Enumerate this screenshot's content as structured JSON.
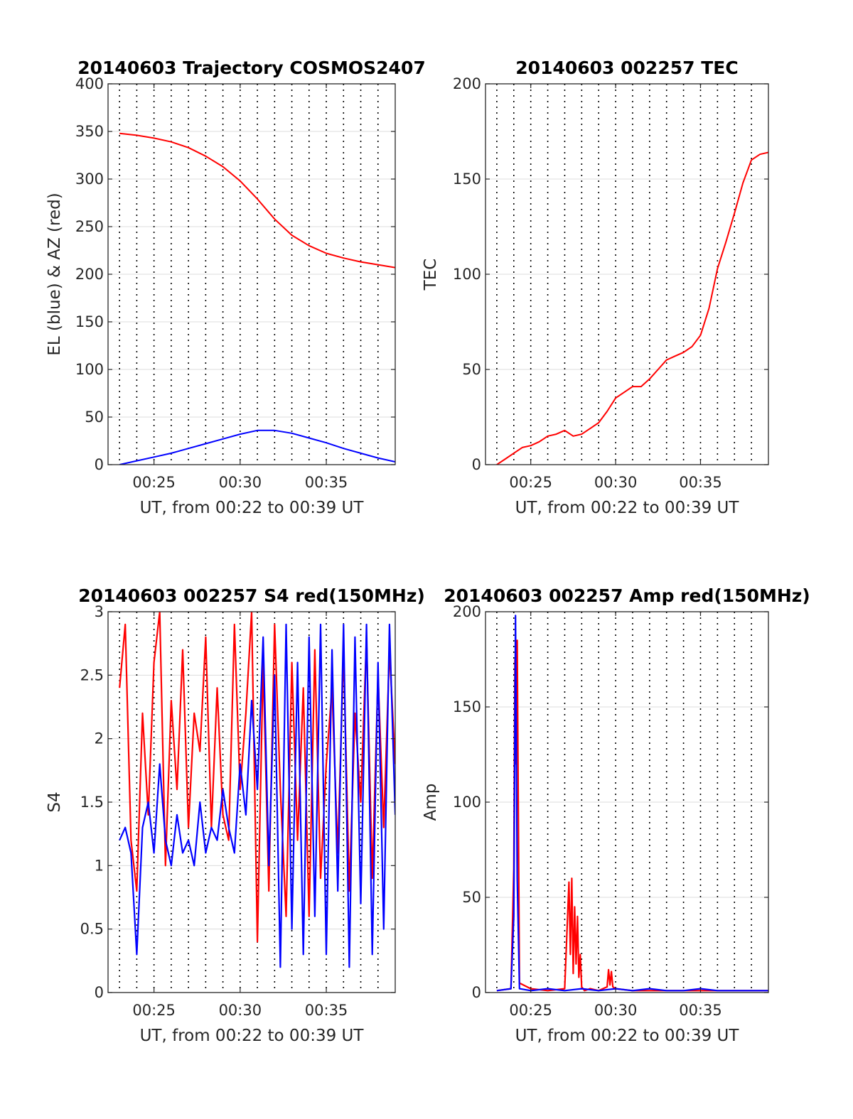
{
  "figure": {
    "background": "#ffffff"
  },
  "chart_data": [
    {
      "id": "trajectory",
      "type": "line",
      "title": "20140603 Trajectory COSMOS2407",
      "xlabel": "UT, from 00:22 to 00:39 UT",
      "ylabel": "EL (blue) & AZ (red)",
      "xlim": [
        "00:22:20",
        "00:39:00"
      ],
      "ylim": [
        0,
        400
      ],
      "yticks": [
        0,
        50,
        100,
        150,
        200,
        250,
        300,
        350,
        400
      ],
      "xticks": [
        "00:25",
        "00:30",
        "00:35"
      ],
      "dotted_time_gridlines": [
        "00:23",
        "00:24",
        "00:25",
        "00:26",
        "00:27",
        "00:28",
        "00:29",
        "00:30",
        "00:31",
        "00:32",
        "00:33",
        "00:34",
        "00:35",
        "00:36",
        "00:37",
        "00:38"
      ],
      "grid": true,
      "series": [
        {
          "color": "#ff0000",
          "x": [
            "00:23",
            "00:24",
            "00:25",
            "00:26",
            "00:27",
            "00:28",
            "00:29",
            "00:30",
            "00:31",
            "00:32",
            "00:33",
            "00:34",
            "00:35",
            "00:36",
            "00:37",
            "00:38",
            "00:39"
          ],
          "y": [
            348,
            346,
            343,
            339,
            333,
            324,
            313,
            298,
            279,
            258,
            241,
            230,
            222,
            217,
            213,
            210,
            207
          ]
        },
        {
          "color": "#0000ff",
          "x": [
            "00:23",
            "00:24",
            "00:25",
            "00:26",
            "00:27",
            "00:28",
            "00:29",
            "00:30",
            "00:31",
            "00:32",
            "00:33",
            "00:34",
            "00:35",
            "00:36",
            "00:37",
            "00:38",
            "00:39"
          ],
          "y": [
            0,
            4,
            8,
            12,
            17,
            22,
            27,
            32,
            36,
            36,
            33,
            28,
            23,
            17,
            12,
            7,
            3
          ]
        }
      ]
    },
    {
      "id": "tec",
      "type": "line",
      "title": "20140603 002257 TEC",
      "xlabel": "UT, from 00:22 to 00:39 UT",
      "ylabel": "TEC",
      "xlim": [
        "00:22:20",
        "00:39:00"
      ],
      "ylim": [
        0,
        200
      ],
      "yticks": [
        0,
        50,
        100,
        150,
        200
      ],
      "xticks": [
        "00:25",
        "00:30",
        "00:35"
      ],
      "dotted_time_gridlines": [
        "00:23",
        "00:24",
        "00:25",
        "00:26",
        "00:27",
        "00:28",
        "00:29",
        "00:30",
        "00:31",
        "00:32",
        "00:33",
        "00:34",
        "00:35",
        "00:36",
        "00:37",
        "00:38"
      ],
      "grid": true,
      "series": [
        {
          "color": "#ff0000",
          "x": [
            "00:23",
            "00:23:30",
            "00:24",
            "00:24:30",
            "00:25",
            "00:25:30",
            "00:26",
            "00:26:30",
            "00:27",
            "00:27:30",
            "00:28",
            "00:28:30",
            "00:29",
            "00:29:30",
            "00:30",
            "00:30:30",
            "00:31",
            "00:31:30",
            "00:32",
            "00:32:30",
            "00:33",
            "00:33:30",
            "00:34",
            "00:34:30",
            "00:35",
            "00:35:30",
            "00:36",
            "00:36:30",
            "00:37",
            "00:37:30",
            "00:38",
            "00:38:30",
            "00:39"
          ],
          "y": [
            0,
            3,
            6,
            9,
            10,
            12,
            15,
            16,
            18,
            15,
            16,
            19,
            22,
            28,
            35,
            38,
            41,
            41,
            45,
            50,
            55,
            57,
            59,
            62,
            68,
            82,
            103,
            117,
            132,
            148,
            160,
            163,
            164
          ]
        }
      ]
    },
    {
      "id": "s4",
      "type": "line",
      "title": "20140603 002257 S4 red(150MHz)",
      "xlabel": "UT, from 00:22 to 00:39 UT",
      "ylabel": "S4",
      "xlim": [
        "00:22:20",
        "00:39:00"
      ],
      "ylim": [
        0,
        3
      ],
      "yticks": [
        0,
        0.5,
        1,
        1.5,
        2,
        2.5,
        3
      ],
      "xticks": [
        "00:25",
        "00:30",
        "00:35"
      ],
      "dotted_time_gridlines": [
        "00:23",
        "00:24",
        "00:25",
        "00:26",
        "00:27",
        "00:28",
        "00:29",
        "00:30",
        "00:31",
        "00:32",
        "00:33",
        "00:34",
        "00:35",
        "00:36",
        "00:37",
        "00:38"
      ],
      "grid": true,
      "series": [
        {
          "color": "#ff0000",
          "x": [
            "00:23",
            "00:23:20",
            "00:23:40",
            "00:24",
            "00:24:20",
            "00:24:40",
            "00:25",
            "00:25:20",
            "00:25:40",
            "00:26",
            "00:26:20",
            "00:26:40",
            "00:27",
            "00:27:20",
            "00:27:40",
            "00:28",
            "00:28:20",
            "00:28:40",
            "00:29",
            "00:29:20",
            "00:29:40",
            "00:30",
            "00:30:20",
            "00:30:40",
            "00:31",
            "00:31:20",
            "00:31:40",
            "00:32",
            "00:32:20",
            "00:32:40",
            "00:33",
            "00:33:20",
            "00:33:40",
            "00:34",
            "00:34:20",
            "00:34:40",
            "00:35",
            "00:35:20",
            "00:35:40",
            "00:36",
            "00:36:20",
            "00:36:40",
            "00:37",
            "00:37:20",
            "00:37:40",
            "00:38",
            "00:38:20",
            "00:38:40",
            "00:39"
          ],
          "y": [
            2.4,
            2.9,
            1.2,
            0.8,
            2.2,
            1.4,
            2.6,
            3.0,
            1.0,
            2.3,
            1.6,
            2.7,
            1.3,
            2.2,
            1.9,
            2.8,
            1.3,
            2.4,
            1.4,
            1.2,
            2.9,
            1.6,
            2.2,
            3.0,
            0.4,
            2.6,
            0.8,
            2.9,
            1.6,
            0.6,
            2.6,
            1.2,
            2.4,
            0.6,
            2.7,
            0.9,
            1.8,
            2.4,
            1.1,
            2.7,
            0.8,
            2.2,
            1.5,
            2.8,
            0.9,
            2.5,
            1.3,
            2.7,
            1.8
          ]
        },
        {
          "color": "#0000ff",
          "x": [
            "00:23",
            "00:23:20",
            "00:23:40",
            "00:24",
            "00:24:20",
            "00:24:40",
            "00:25",
            "00:25:20",
            "00:25:40",
            "00:26",
            "00:26:20",
            "00:26:40",
            "00:27",
            "00:27:20",
            "00:27:40",
            "00:28",
            "00:28:20",
            "00:28:40",
            "00:29",
            "00:29:20",
            "00:29:40",
            "00:30",
            "00:30:20",
            "00:30:40",
            "00:31",
            "00:31:20",
            "00:31:40",
            "00:32",
            "00:32:20",
            "00:32:40",
            "00:33",
            "00:33:20",
            "00:33:40",
            "00:34",
            "00:34:20",
            "00:34:40",
            "00:35",
            "00:35:20",
            "00:35:40",
            "00:36",
            "00:36:20",
            "00:36:40",
            "00:37",
            "00:37:20",
            "00:37:40",
            "00:38",
            "00:38:20",
            "00:38:40",
            "00:39"
          ],
          "y": [
            1.2,
            1.3,
            1.1,
            0.3,
            1.3,
            1.5,
            1.1,
            1.8,
            1.2,
            1.0,
            1.4,
            1.1,
            1.2,
            1.0,
            1.5,
            1.1,
            1.3,
            1.2,
            1.6,
            1.3,
            1.1,
            1.8,
            1.4,
            2.3,
            1.6,
            2.8,
            1.0,
            2.5,
            0.2,
            2.9,
            0.5,
            2.6,
            0.3,
            2.8,
            0.6,
            2.9,
            0.3,
            2.7,
            0.8,
            2.9,
            0.2,
            2.8,
            0.7,
            2.9,
            0.3,
            2.6,
            0.5,
            2.9,
            1.4
          ]
        }
      ]
    },
    {
      "id": "amp",
      "type": "line",
      "title": "20140603 002257 Amp red(150MHz)",
      "xlabel": "UT, from 00:22 to 00:39 UT",
      "ylabel": "Amp",
      "xlim": [
        "00:22:20",
        "00:39:00"
      ],
      "ylim": [
        0,
        200
      ],
      "yticks": [
        0,
        50,
        100,
        150,
        200
      ],
      "xticks": [
        "00:25",
        "00:30",
        "00:35"
      ],
      "dotted_time_gridlines": [
        "00:23",
        "00:24",
        "00:25",
        "00:26",
        "00:27",
        "00:28",
        "00:29",
        "00:30",
        "00:31",
        "00:32",
        "00:33",
        "00:34",
        "00:35",
        "00:36",
        "00:37",
        "00:38"
      ],
      "grid": true,
      "series": [
        {
          "color": "#ff0000",
          "x": [
            "00:23",
            "00:23:50",
            "00:24:00",
            "00:24:04",
            "00:24:08",
            "00:24:12",
            "00:24:20",
            "00:25",
            "00:26",
            "00:27",
            "00:27:15",
            "00:27:20",
            "00:27:25",
            "00:27:30",
            "00:27:35",
            "00:27:40",
            "00:27:45",
            "00:27:50",
            "00:27:55",
            "00:28:00",
            "00:28:10",
            "00:28:30",
            "00:29",
            "00:29:30",
            "00:29:35",
            "00:29:40",
            "00:29:45",
            "00:29:50",
            "00:30",
            "00:31",
            "00:32",
            "00:33",
            "00:34",
            "00:35",
            "00:36",
            "00:37",
            "00:38",
            "00:39"
          ],
          "y": [
            1,
            2,
            65,
            175,
            120,
            185,
            5,
            2,
            1,
            2,
            58,
            20,
            60,
            10,
            45,
            15,
            40,
            8,
            20,
            3,
            1,
            2,
            1,
            3,
            12,
            4,
            11,
            3,
            2,
            1,
            1,
            1,
            1,
            1,
            1,
            1,
            1,
            1
          ]
        },
        {
          "color": "#0000ff",
          "x": [
            "00:23",
            "00:23:50",
            "00:24:00",
            "00:24:06",
            "00:24:12",
            "00:24:20",
            "00:25",
            "00:26",
            "00:27",
            "00:28",
            "00:29",
            "00:30",
            "00:31",
            "00:32",
            "00:33",
            "00:34",
            "00:35",
            "00:36",
            "00:37",
            "00:38",
            "00:39"
          ],
          "y": [
            1,
            2,
            40,
            198,
            60,
            2,
            1,
            2,
            1,
            2,
            1,
            2,
            1,
            2,
            1,
            1,
            2,
            1,
            1,
            1,
            1
          ]
        }
      ]
    }
  ]
}
